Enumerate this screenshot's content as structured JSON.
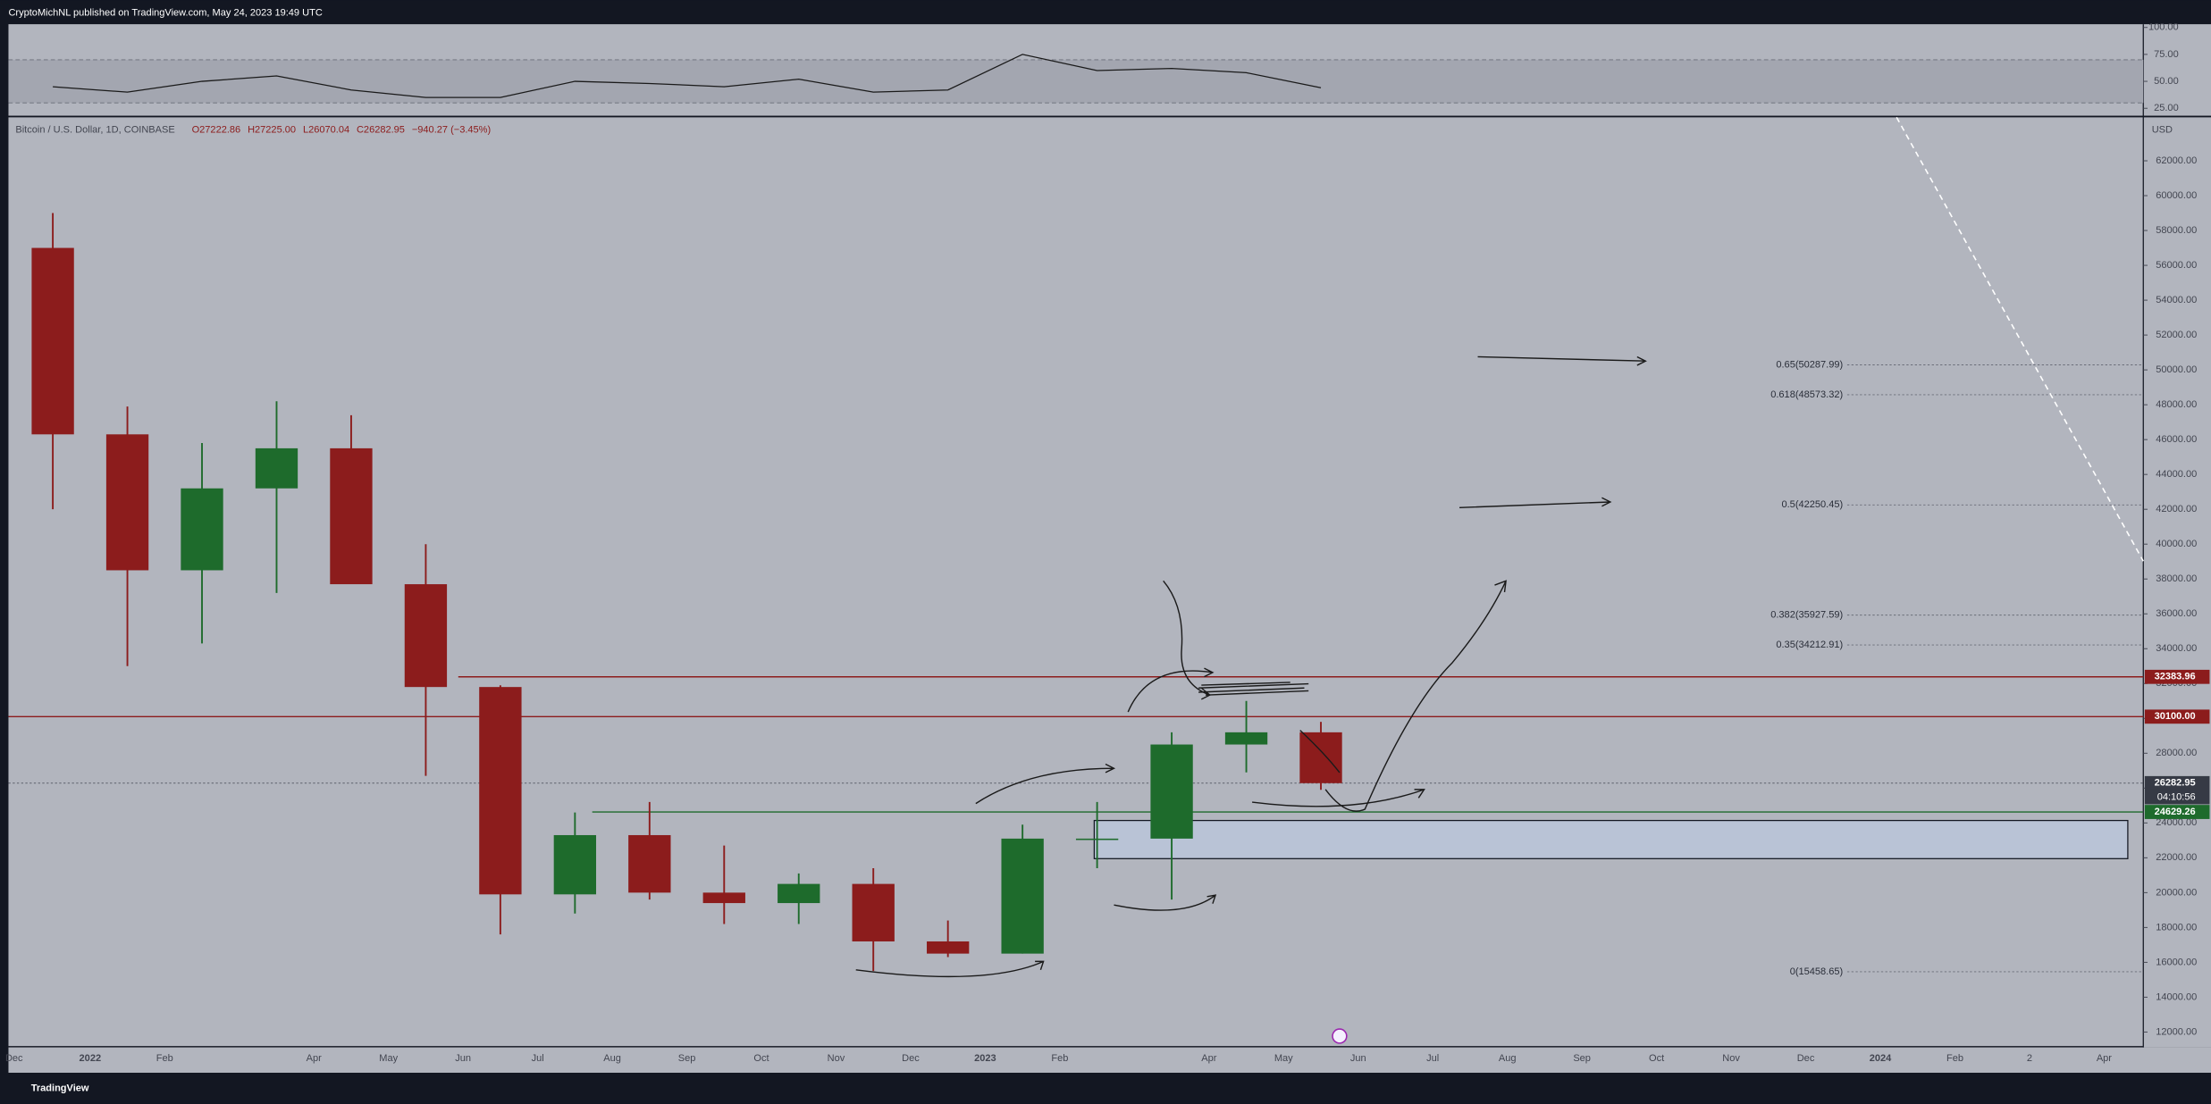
{
  "header": {
    "text": "CryptoMichNL published on TradingView.com, May 24, 2023 19:49 UTC"
  },
  "chart_data": {
    "type": "candlestick",
    "symbol": "Bitcoin / U.S. Dollar, 1D, COINBASE",
    "legend_values": [
      "O27222.86",
      "H27225.00",
      "L26070.04",
      "C26282.95",
      "−940.27 (−3.45%)"
    ],
    "currency": "USD",
    "categories": [
      "Dec",
      "2022",
      "Feb",
      null,
      "Apr",
      "May",
      "Jun",
      "Jul",
      "Aug",
      "Sep",
      "Oct",
      "Nov",
      "Dec",
      "2023",
      "Feb",
      null,
      "Apr",
      "May",
      "Jun",
      "Jul",
      "Aug",
      "Sep",
      "Oct",
      "Nov",
      "Dec",
      "2024",
      "Feb",
      "2",
      "Apr"
    ],
    "open": [
      57000,
      46300,
      38500,
      43200,
      45500,
      37700,
      31800,
      19900,
      23300,
      20000,
      19400,
      20500,
      17200,
      16500,
      23100,
      23100,
      28500,
      29200,
      null,
      null,
      null,
      null,
      null,
      null,
      null,
      null,
      null,
      null,
      null
    ],
    "high": [
      59000,
      47900,
      45800,
      48200,
      47400,
      40000,
      31900,
      24600,
      25200,
      22700,
      21100,
      21400,
      18400,
      23900,
      25200,
      29200,
      31000,
      29800,
      null,
      null,
      null,
      null,
      null,
      null,
      null,
      null,
      null,
      null,
      null
    ],
    "low": [
      42000,
      33000,
      34300,
      37200,
      37700,
      26700,
      17600,
      18800,
      19600,
      18200,
      18200,
      15500,
      16300,
      16500,
      21400,
      19600,
      26900,
      25900,
      null,
      null,
      null,
      null,
      null,
      null,
      null,
      null,
      null,
      null,
      null
    ],
    "close": [
      46300,
      38500,
      43200,
      45500,
      37700,
      31800,
      19900,
      23300,
      20000,
      19400,
      20500,
      17200,
      16500,
      23100,
      23100,
      28500,
      29200,
      26282.95,
      null,
      null,
      null,
      null,
      null,
      null,
      null,
      null,
      null,
      null,
      null
    ],
    "up_color": "#1e6b2c",
    "down_color": "#8c1c1c",
    "ylim": [
      11200,
      64500
    ],
    "yticks": [
      {
        "value": 12000,
        "label": "12000.00"
      },
      {
        "value": 14000,
        "label": "14000.00"
      },
      {
        "value": 16000,
        "label": "16000.00"
      },
      {
        "value": 18000,
        "label": "18000.00"
      },
      {
        "value": 20000,
        "label": "20000.00"
      },
      {
        "value": 22000,
        "label": "22000.00"
      },
      {
        "value": 24000,
        "label": "24000.00"
      },
      {
        "value": 26000,
        "label": "26000.00"
      },
      {
        "value": 28000,
        "label": "28000.00"
      },
      {
        "value": 30000,
        "label": "30000.00"
      },
      {
        "value": 32000,
        "label": "32000.00"
      },
      {
        "value": 34000,
        "label": "34000.00"
      },
      {
        "value": 36000,
        "label": "36000.00"
      },
      {
        "value": 38000,
        "label": "38000.00"
      },
      {
        "value": 40000,
        "label": "40000.00"
      },
      {
        "value": 42000,
        "label": "42000.00"
      },
      {
        "value": 44000,
        "label": "44000.00"
      },
      {
        "value": 46000,
        "label": "46000.00"
      },
      {
        "value": 48000,
        "label": "48000.00"
      },
      {
        "value": 50000,
        "label": "50000.00"
      },
      {
        "value": 52000,
        "label": "52000.00"
      },
      {
        "value": 54000,
        "label": "54000.00"
      },
      {
        "value": 56000,
        "label": "56000.00"
      },
      {
        "value": 58000,
        "label": "58000.00"
      },
      {
        "value": 60000,
        "label": "60000.00"
      },
      {
        "value": 62000,
        "label": "62000.00"
      }
    ],
    "levels": [
      {
        "value": 32383.96,
        "label": "32383.96",
        "color": "#8c1c1c"
      },
      {
        "value": 30100,
        "label": "30100.00",
        "color": "#8c1c1c"
      },
      {
        "value": 24629.26,
        "label": "24629.26",
        "color": "#1e6b2c"
      }
    ],
    "last_price": {
      "value": 26282.95,
      "label": "26282.95",
      "countdown": "04:10:56",
      "color": "#363a45"
    },
    "fib": [
      {
        "value": 50287.99,
        "label": "0.65(50287.99)"
      },
      {
        "value": 48573.32,
        "label": "0.618(48573.32)"
      },
      {
        "value": 42250.45,
        "label": "0.5(42250.45)"
      },
      {
        "value": 35927.59,
        "label": "0.382(35927.59)"
      },
      {
        "value": 34212.91,
        "label": "0.35(34212.91)"
      },
      {
        "value": 15458.65,
        "label": "0(15458.65)"
      }
    ],
    "zone": [
      21950,
      24140
    ],
    "rsi": {
      "ylim": [
        18,
        103
      ],
      "yticks": [
        {
          "value": 100,
          "label": "100.00"
        },
        {
          "value": 75,
          "label": "75.00"
        },
        {
          "value": 50,
          "label": "50.00"
        },
        {
          "value": 25,
          "label": "25.00"
        }
      ],
      "band": [
        30,
        70
      ],
      "values": [
        45,
        40,
        50,
        55,
        42,
        35,
        35,
        50,
        48,
        45,
        52,
        40,
        42,
        75,
        60,
        62,
        58,
        44,
        null,
        null,
        null,
        null,
        null,
        null,
        null,
        null,
        null,
        null,
        null
      ]
    }
  },
  "footer": {
    "brand": "TradingView"
  }
}
